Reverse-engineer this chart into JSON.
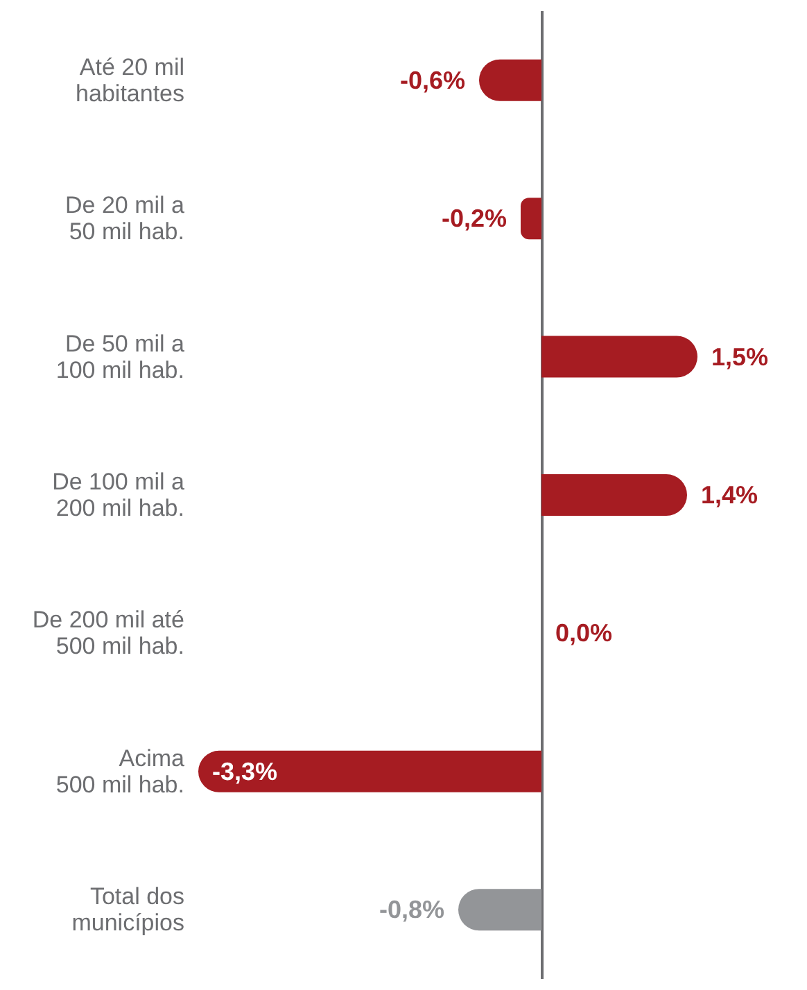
{
  "chart_data": {
    "type": "bar",
    "orientation": "horizontal",
    "categories": [
      "Até 20 mil\nhabitantes",
      "De 20 mil a\n50 mil hab.",
      "De 50 mil a\n100 mil hab.",
      "De 100 mil a\n200 mil hab.",
      "De 200 mil até\n500 mil hab.",
      "Acima\n500 mil hab.",
      "Total dos\nmunicípios"
    ],
    "values": [
      -0.6,
      -0.2,
      1.5,
      1.4,
      0.0,
      -3.3,
      -0.8
    ],
    "colors": [
      "#a61c22",
      "#a61c22",
      "#a61c22",
      "#a61c22",
      "#a61c22",
      "#a61c22",
      "#939598"
    ],
    "value_labels": [
      "-0,6%",
      "-0,2%",
      "1,5%",
      "1,4%",
      "0,0%",
      "-3,3%",
      "-0,8%"
    ]
  }
}
